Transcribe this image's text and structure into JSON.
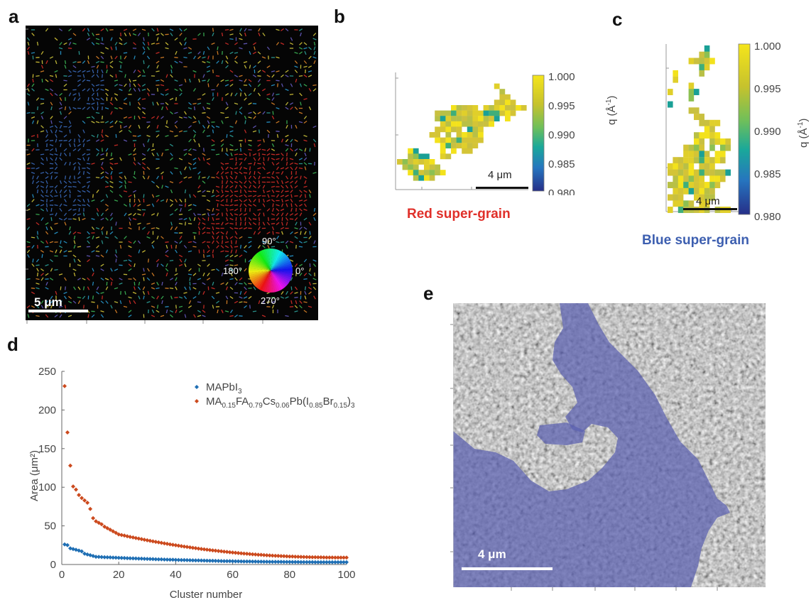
{
  "panels": {
    "a": {
      "letter": "a",
      "scale_bar": "5 μm",
      "wheel": {
        "top": "90°",
        "right": "0°",
        "bottom": "270°",
        "left": "180°"
      },
      "red_color": "#e0302a",
      "blue_color": "#3d6fc4"
    },
    "b": {
      "letter": "b",
      "scale_bar": "4 μm",
      "caption": "Red super-grain",
      "caption_color": "#e0302a"
    },
    "c": {
      "letter": "c",
      "scale_bar": "4 μm",
      "caption": "Blue super-grain",
      "caption_color": "#3d5fb0"
    },
    "d": {
      "letter": "d"
    },
    "e": {
      "letter": "e",
      "scale_bar": "4 μm",
      "overlay_color": "#5a5fb0"
    }
  },
  "colorbar": {
    "ticks": [
      "1.000",
      "0.995",
      "0.990",
      "0.985",
      "0.980"
    ],
    "label": "q (Å",
    "label_sup": "-1",
    "label_end": ")"
  },
  "chart_data": {
    "type": "scatter",
    "xlabel": "Cluster number",
    "ylabel": "Area (μm²)",
    "xlim": [
      0,
      100
    ],
    "ylim": [
      0,
      250
    ],
    "x_ticks": [
      "0",
      "20",
      "40",
      "60",
      "80",
      "100"
    ],
    "y_ticks": [
      "0",
      "50",
      "100",
      "150",
      "200",
      "250"
    ],
    "legend_position": "top-right",
    "series": [
      {
        "name": "MAPbI",
        "name_sub": "3",
        "color": "#1f6fb4",
        "first_values": [
          26,
          25,
          21,
          20,
          19,
          18,
          17,
          14,
          13,
          12,
          11,
          10
        ],
        "tail_from": 10,
        "tail_to": 3
      },
      {
        "name_html_parts": [
          "MA",
          "0.15",
          "FA",
          "0.79",
          "Cs",
          "0.06",
          "Pb(I",
          "0.85",
          "Br",
          "0.15",
          ")",
          "3"
        ],
        "color": "#cc4a1e",
        "first_values": [
          231,
          171,
          128,
          101,
          97,
          90,
          86,
          83,
          80,
          72,
          60,
          56,
          54,
          52,
          49,
          47,
          45,
          43,
          41,
          39
        ],
        "tail_from": 39,
        "tail_to": 9
      }
    ]
  }
}
